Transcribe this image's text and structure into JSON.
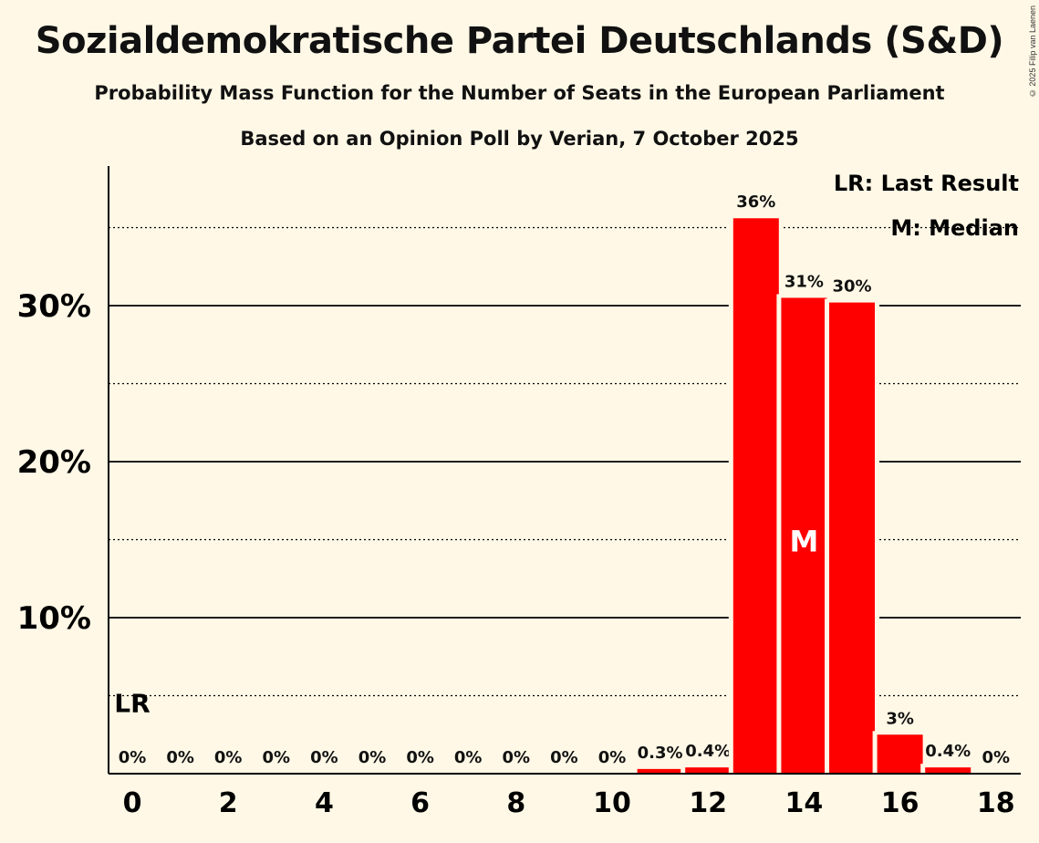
{
  "chart_data": {
    "type": "bar",
    "title": "Sozialdemokratische Partei Deutschlands (S&D)",
    "subtitle": "Probability Mass Function for the Number of Seats in the European Parliament",
    "subtitle2": "Based on an Opinion Poll by Verian, 7 October 2025",
    "copyright": "© 2025 Filip van Laenen",
    "x": [
      0,
      1,
      2,
      3,
      4,
      5,
      6,
      7,
      8,
      9,
      10,
      11,
      12,
      13,
      14,
      15,
      16,
      17,
      18
    ],
    "values": [
      0,
      0,
      0,
      0,
      0,
      0,
      0,
      0,
      0,
      0,
      0,
      0.3,
      0.4,
      35.6,
      30.5,
      30.2,
      2.5,
      0.4,
      0
    ],
    "value_labels": [
      "0%",
      "0%",
      "0%",
      "0%",
      "0%",
      "0%",
      "0%",
      "0%",
      "0%",
      "0%",
      "0%",
      "0.3%",
      "0.4%",
      "36%",
      "31%",
      "30%",
      "3%",
      "0.4%",
      "0%"
    ],
    "x_ticks": [
      0,
      2,
      4,
      6,
      8,
      10,
      12,
      14,
      16,
      18
    ],
    "y_ticks": [
      10,
      20,
      30
    ],
    "y_tick_labels": [
      "10%",
      "20%",
      "30%"
    ],
    "y_minor_ticks": [
      5,
      15,
      25,
      35
    ],
    "ylim": [
      0,
      38
    ],
    "last_result_seat": 0,
    "last_result_marker": "LR",
    "median_seat": 14,
    "median_marker": "M",
    "legend": [
      "LR: Last Result",
      "M: Median"
    ],
    "legend_position": "top-right",
    "bar_color": "#ff0000",
    "xlabel": "",
    "ylabel": ""
  }
}
